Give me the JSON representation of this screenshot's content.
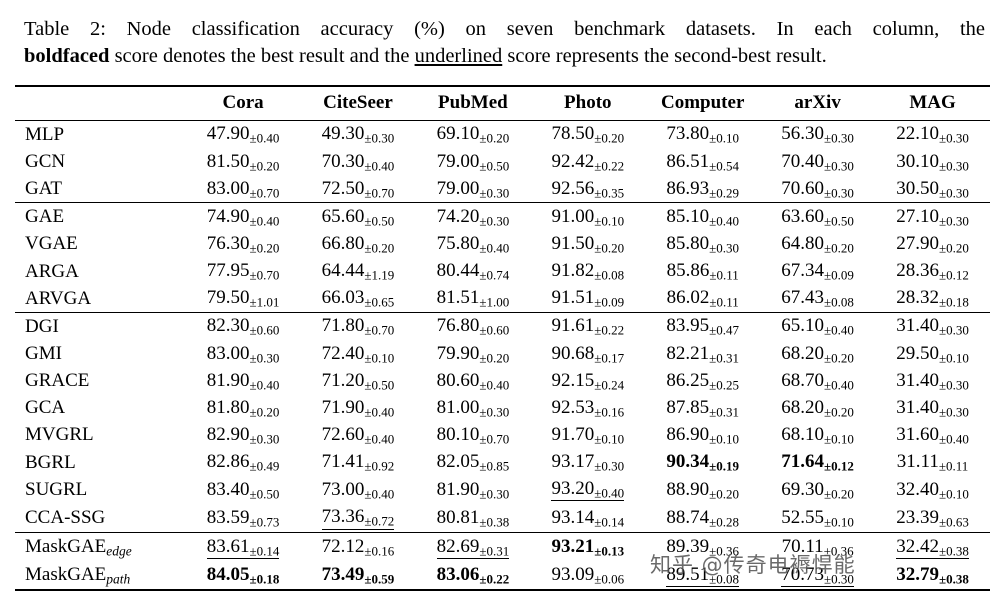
{
  "caption": {
    "label": "Table 2:",
    "line1_rest": " Node classification accuracy (%) on seven benchmark datasets. In each column, the",
    "bold_word": "boldfaced",
    "line2_mid": " score denotes the best result and the ",
    "underlined_word": "underlined",
    "line2_end": " score represents the second-best result."
  },
  "colors": {
    "text": "#000000",
    "rules": "#000000",
    "watermark": "#555555"
  },
  "watermark": {
    "text": "知乎 @传奇电褥悍能"
  },
  "table": {
    "columns": [
      "Cora",
      "CiteSeer",
      "PubMed",
      "Photo",
      "Computer",
      "arXiv",
      "MAG"
    ],
    "groups": [
      {
        "rows": [
          {
            "method": "MLP",
            "sub": "",
            "cells": [
              {
                "v": "47.90",
                "pm": "±0.40"
              },
              {
                "v": "49.30",
                "pm": "±0.30"
              },
              {
                "v": "69.10",
                "pm": "±0.20"
              },
              {
                "v": "78.50",
                "pm": "±0.20"
              },
              {
                "v": "73.80",
                "pm": "±0.10"
              },
              {
                "v": "56.30",
                "pm": "±0.30"
              },
              {
                "v": "22.10",
                "pm": "±0.30"
              }
            ]
          },
          {
            "method": "GCN",
            "sub": "",
            "cells": [
              {
                "v": "81.50",
                "pm": "±0.20"
              },
              {
                "v": "70.30",
                "pm": "±0.40"
              },
              {
                "v": "79.00",
                "pm": "±0.50"
              },
              {
                "v": "92.42",
                "pm": "±0.22"
              },
              {
                "v": "86.51",
                "pm": "±0.54"
              },
              {
                "v": "70.40",
                "pm": "±0.30"
              },
              {
                "v": "30.10",
                "pm": "±0.30"
              }
            ]
          },
          {
            "method": "GAT",
            "sub": "",
            "cells": [
              {
                "v": "83.00",
                "pm": "±0.70"
              },
              {
                "v": "72.50",
                "pm": "±0.70"
              },
              {
                "v": "79.00",
                "pm": "±0.30"
              },
              {
                "v": "92.56",
                "pm": "±0.35"
              },
              {
                "v": "86.93",
                "pm": "±0.29"
              },
              {
                "v": "70.60",
                "pm": "±0.30"
              },
              {
                "v": "30.50",
                "pm": "±0.30"
              }
            ]
          }
        ]
      },
      {
        "rows": [
          {
            "method": "GAE",
            "sub": "",
            "cells": [
              {
                "v": "74.90",
                "pm": "±0.40"
              },
              {
                "v": "65.60",
                "pm": "±0.50"
              },
              {
                "v": "74.20",
                "pm": "±0.30"
              },
              {
                "v": "91.00",
                "pm": "±0.10"
              },
              {
                "v": "85.10",
                "pm": "±0.40"
              },
              {
                "v": "63.60",
                "pm": "±0.50"
              },
              {
                "v": "27.10",
                "pm": "±0.30"
              }
            ]
          },
          {
            "method": "VGAE",
            "sub": "",
            "cells": [
              {
                "v": "76.30",
                "pm": "±0.20"
              },
              {
                "v": "66.80",
                "pm": "±0.20"
              },
              {
                "v": "75.80",
                "pm": "±0.40"
              },
              {
                "v": "91.50",
                "pm": "±0.20"
              },
              {
                "v": "85.80",
                "pm": "±0.30"
              },
              {
                "v": "64.80",
                "pm": "±0.20"
              },
              {
                "v": "27.90",
                "pm": "±0.20"
              }
            ]
          },
          {
            "method": "ARGA",
            "sub": "",
            "cells": [
              {
                "v": "77.95",
                "pm": "±0.70"
              },
              {
                "v": "64.44",
                "pm": "±1.19"
              },
              {
                "v": "80.44",
                "pm": "±0.74"
              },
              {
                "v": "91.82",
                "pm": "±0.08"
              },
              {
                "v": "85.86",
                "pm": "±0.11"
              },
              {
                "v": "67.34",
                "pm": "±0.09"
              },
              {
                "v": "28.36",
                "pm": "±0.12"
              }
            ]
          },
          {
            "method": "ARVGA",
            "sub": "",
            "cells": [
              {
                "v": "79.50",
                "pm": "±1.01"
              },
              {
                "v": "66.03",
                "pm": "±0.65"
              },
              {
                "v": "81.51",
                "pm": "±1.00"
              },
              {
                "v": "91.51",
                "pm": "±0.09"
              },
              {
                "v": "86.02",
                "pm": "±0.11"
              },
              {
                "v": "67.43",
                "pm": "±0.08"
              },
              {
                "v": "28.32",
                "pm": "±0.18"
              }
            ]
          }
        ]
      },
      {
        "rows": [
          {
            "method": "DGI",
            "sub": "",
            "cells": [
              {
                "v": "82.30",
                "pm": "±0.60"
              },
              {
                "v": "71.80",
                "pm": "±0.70"
              },
              {
                "v": "76.80",
                "pm": "±0.60"
              },
              {
                "v": "91.61",
                "pm": "±0.22"
              },
              {
                "v": "83.95",
                "pm": "±0.47"
              },
              {
                "v": "65.10",
                "pm": "±0.40"
              },
              {
                "v": "31.40",
                "pm": "±0.30"
              }
            ]
          },
          {
            "method": "GMI",
            "sub": "",
            "cells": [
              {
                "v": "83.00",
                "pm": "±0.30"
              },
              {
                "v": "72.40",
                "pm": "±0.10"
              },
              {
                "v": "79.90",
                "pm": "±0.20"
              },
              {
                "v": "90.68",
                "pm": "±0.17"
              },
              {
                "v": "82.21",
                "pm": "±0.31"
              },
              {
                "v": "68.20",
                "pm": "±0.20"
              },
              {
                "v": "29.50",
                "pm": "±0.10"
              }
            ]
          },
          {
            "method": "GRACE",
            "sub": "",
            "cells": [
              {
                "v": "81.90",
                "pm": "±0.40"
              },
              {
                "v": "71.20",
                "pm": "±0.50"
              },
              {
                "v": "80.60",
                "pm": "±0.40"
              },
              {
                "v": "92.15",
                "pm": "±0.24"
              },
              {
                "v": "86.25",
                "pm": "±0.25"
              },
              {
                "v": "68.70",
                "pm": "±0.40"
              },
              {
                "v": "31.40",
                "pm": "±0.30"
              }
            ]
          },
          {
            "method": "GCA",
            "sub": "",
            "cells": [
              {
                "v": "81.80",
                "pm": "±0.20"
              },
              {
                "v": "71.90",
                "pm": "±0.40"
              },
              {
                "v": "81.00",
                "pm": "±0.30"
              },
              {
                "v": "92.53",
                "pm": "±0.16"
              },
              {
                "v": "87.85",
                "pm": "±0.31"
              },
              {
                "v": "68.20",
                "pm": "±0.20"
              },
              {
                "v": "31.40",
                "pm": "±0.30"
              }
            ]
          },
          {
            "method": "MVGRL",
            "sub": "",
            "cells": [
              {
                "v": "82.90",
                "pm": "±0.30"
              },
              {
                "v": "72.60",
                "pm": "±0.40"
              },
              {
                "v": "80.10",
                "pm": "±0.70"
              },
              {
                "v": "91.70",
                "pm": "±0.10"
              },
              {
                "v": "86.90",
                "pm": "±0.10"
              },
              {
                "v": "68.10",
                "pm": "±0.10"
              },
              {
                "v": "31.60",
                "pm": "±0.40"
              }
            ]
          },
          {
            "method": "BGRL",
            "sub": "",
            "cells": [
              {
                "v": "82.86",
                "pm": "±0.49"
              },
              {
                "v": "71.41",
                "pm": "±0.92"
              },
              {
                "v": "82.05",
                "pm": "±0.85"
              },
              {
                "v": "93.17",
                "pm": "±0.30"
              },
              {
                "v": "90.34",
                "pm": "±0.19",
                "b": true
              },
              {
                "v": "71.64",
                "pm": "±0.12",
                "b": true
              },
              {
                "v": "31.11",
                "pm": "±0.11"
              }
            ]
          },
          {
            "method": "SUGRL",
            "sub": "",
            "cells": [
              {
                "v": "83.40",
                "pm": "±0.50"
              },
              {
                "v": "73.00",
                "pm": "±0.40"
              },
              {
                "v": "81.90",
                "pm": "±0.30"
              },
              {
                "v": "93.20",
                "pm": "±0.40",
                "u": true
              },
              {
                "v": "88.90",
                "pm": "±0.20"
              },
              {
                "v": "69.30",
                "pm": "±0.20"
              },
              {
                "v": "32.40",
                "pm": "±0.10"
              }
            ]
          },
          {
            "method": "CCA-SSG",
            "sub": "",
            "cells": [
              {
                "v": "83.59",
                "pm": "±0.73"
              },
              {
                "v": "73.36",
                "pm": "±0.72",
                "u": true
              },
              {
                "v": "80.81",
                "pm": "±0.38"
              },
              {
                "v": "93.14",
                "pm": "±0.14"
              },
              {
                "v": "88.74",
                "pm": "±0.28"
              },
              {
                "v": "52.55",
                "pm": "±0.10"
              },
              {
                "v": "23.39",
                "pm": "±0.63"
              }
            ]
          }
        ]
      },
      {
        "rows": [
          {
            "method": "MaskGAE",
            "sub": "edge",
            "cells": [
              {
                "v": "83.61",
                "pm": "±0.14",
                "u": true
              },
              {
                "v": "72.12",
                "pm": "±0.16"
              },
              {
                "v": "82.69",
                "pm": "±0.31",
                "u": true
              },
              {
                "v": "93.21",
                "pm": "±0.13",
                "b": true
              },
              {
                "v": "89.39",
                "pm": "±0.36"
              },
              {
                "v": "70.11",
                "pm": "±0.36"
              },
              {
                "v": "32.42",
                "pm": "±0.38",
                "u": true
              }
            ]
          },
          {
            "method": "MaskGAE",
            "sub": "path",
            "cells": [
              {
                "v": "84.05",
                "pm": "±0.18",
                "b": true
              },
              {
                "v": "73.49",
                "pm": "±0.59",
                "b": true
              },
              {
                "v": "83.06",
                "pm": "±0.22",
                "b": true
              },
              {
                "v": "93.09",
                "pm": "±0.06"
              },
              {
                "v": "89.51",
                "pm": "±0.08",
                "u": true
              },
              {
                "v": "70.73",
                "pm": "±0.30",
                "u": true
              },
              {
                "v": "32.79",
                "pm": "±0.38",
                "b": true
              }
            ]
          }
        ]
      }
    ]
  }
}
